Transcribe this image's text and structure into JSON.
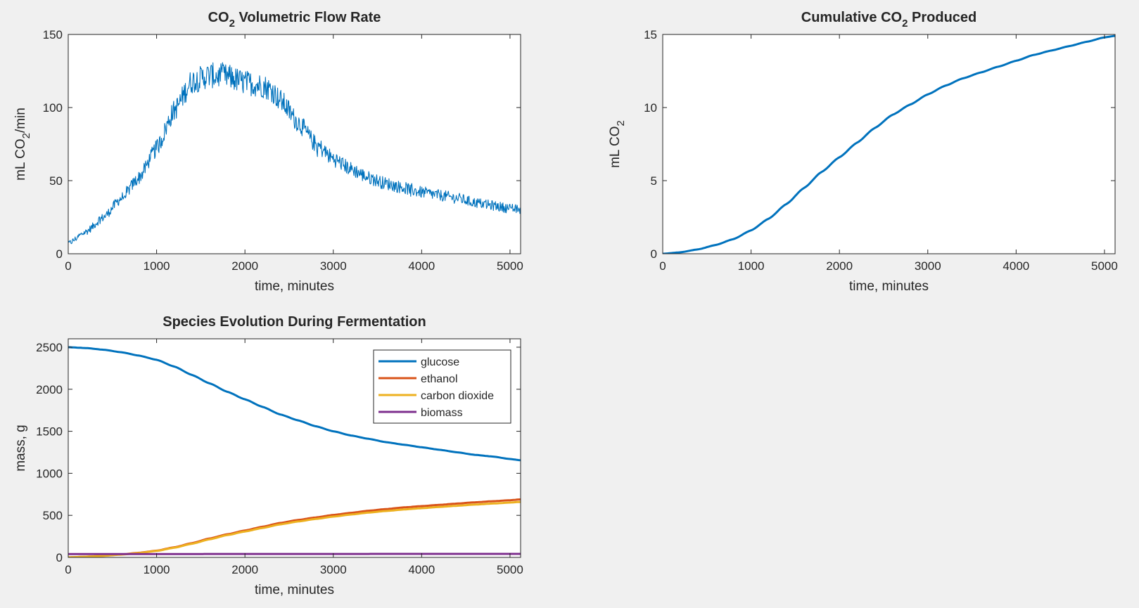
{
  "colors": {
    "background": "#f0f0f0",
    "axes": "#ffffff",
    "frame": "#262626",
    "blue": "#0072bd",
    "orange": "#d95319",
    "yellow": "#edb120",
    "purple": "#7e2f8e"
  },
  "chart_data": [
    {
      "type": "line",
      "title": "CO",
      "title_sub": "2",
      "title_rest": " Volumetric Flow Rate",
      "xlabel": "time, minutes",
      "ylabel": "mL CO",
      "ylabel_sub": "2",
      "ylabel_rest": "/min",
      "xlim": [
        0,
        5120
      ],
      "ylim": [
        0,
        150
      ],
      "xticks": [
        0,
        1000,
        2000,
        3000,
        4000,
        5000
      ],
      "yticks": [
        0,
        50,
        100,
        150
      ],
      "grid": false,
      "series": [
        {
          "color": "#0072bd",
          "noisy": true,
          "x": [
            0,
            200,
            400,
            600,
            800,
            1000,
            1200,
            1400,
            1600,
            1800,
            2000,
            2200,
            2300,
            2400,
            2600,
            2800,
            3000,
            3200,
            3400,
            3600,
            3800,
            4000,
            4200,
            4400,
            4600,
            4800,
            5000,
            5120
          ],
          "y": [
            7,
            15,
            25,
            38,
            52,
            72,
            98,
            118,
            122,
            121,
            117,
            115,
            112,
            105,
            90,
            75,
            65,
            58,
            52,
            48,
            45,
            42,
            40,
            38,
            35,
            33,
            31,
            30
          ]
        }
      ]
    },
    {
      "type": "line",
      "title": "Cumulative CO",
      "title_sub": "2",
      "title_rest": " Produced",
      "xlabel": "time, minutes",
      "ylabel": "mL CO",
      "ylabel_sub": "2",
      "ylabel_rest": "",
      "xlim": [
        0,
        5120
      ],
      "ylim": [
        0,
        15
      ],
      "xticks": [
        0,
        1000,
        2000,
        3000,
        4000,
        5000
      ],
      "yticks": [
        0,
        5,
        10,
        15
      ],
      "grid": false,
      "series": [
        {
          "color": "#0072bd",
          "x": [
            0,
            200,
            400,
            600,
            800,
            1000,
            1200,
            1400,
            1600,
            1800,
            2000,
            2200,
            2400,
            2600,
            2800,
            3000,
            3200,
            3400,
            3600,
            3800,
            4000,
            4200,
            4400,
            4600,
            4800,
            5000,
            5120
          ],
          "y": [
            0,
            0.1,
            0.3,
            0.6,
            1.0,
            1.6,
            2.4,
            3.4,
            4.5,
            5.6,
            6.6,
            7.6,
            8.6,
            9.5,
            10.2,
            10.9,
            11.5,
            12.0,
            12.4,
            12.8,
            13.2,
            13.6,
            13.9,
            14.2,
            14.5,
            14.8,
            14.9
          ]
        }
      ]
    },
    {
      "type": "line",
      "title": "Species Evolution During Fermentation",
      "xlabel": "time, minutes",
      "ylabel": "mass, g",
      "xlim": [
        0,
        5120
      ],
      "ylim": [
        0,
        2600
      ],
      "xticks": [
        0,
        1000,
        2000,
        3000,
        4000,
        5000
      ],
      "yticks": [
        0,
        500,
        1000,
        1500,
        2000,
        2500
      ],
      "grid": false,
      "legend_position": "top-right",
      "series": [
        {
          "name": "glucose",
          "color": "#0072bd",
          "x": [
            0,
            200,
            400,
            600,
            800,
            1000,
            1200,
            1400,
            1600,
            1800,
            2000,
            2200,
            2400,
            2600,
            2800,
            3000,
            3200,
            3400,
            3600,
            3800,
            4000,
            4200,
            4400,
            4600,
            4800,
            5000,
            5120
          ],
          "y": [
            2500,
            2490,
            2470,
            2440,
            2400,
            2350,
            2270,
            2170,
            2070,
            1970,
            1880,
            1790,
            1700,
            1630,
            1560,
            1500,
            1450,
            1410,
            1370,
            1340,
            1310,
            1280,
            1250,
            1220,
            1200,
            1170,
            1155
          ]
        },
        {
          "name": "ethanol",
          "color": "#d95319",
          "x": [
            0,
            200,
            400,
            600,
            800,
            1000,
            1200,
            1400,
            1600,
            1800,
            2000,
            2200,
            2400,
            2600,
            2800,
            3000,
            3200,
            3400,
            3600,
            3800,
            4000,
            4200,
            4400,
            4600,
            4800,
            5000,
            5120
          ],
          "y": [
            0,
            8,
            20,
            35,
            55,
            80,
            120,
            170,
            225,
            275,
            320,
            365,
            410,
            445,
            475,
            505,
            530,
            555,
            575,
            595,
            610,
            625,
            640,
            655,
            668,
            680,
            690
          ]
        },
        {
          "name": "carbon dioxide",
          "color": "#edb120",
          "x": [
            0,
            200,
            400,
            600,
            800,
            1000,
            1200,
            1400,
            1600,
            1800,
            2000,
            2200,
            2400,
            2600,
            2800,
            3000,
            3200,
            3400,
            3600,
            3800,
            4000,
            4200,
            4400,
            4600,
            4800,
            5000,
            5120
          ],
          "y": [
            0,
            8,
            19,
            33,
            52,
            77,
            115,
            162,
            215,
            265,
            308,
            350,
            393,
            427,
            457,
            485,
            510,
            533,
            552,
            570,
            585,
            600,
            614,
            628,
            640,
            652,
            660
          ]
        },
        {
          "name": "biomass",
          "color": "#7e2f8e",
          "x": [
            0,
            1000,
            2000,
            3000,
            4000,
            5120
          ],
          "y": [
            40,
            40,
            41,
            41,
            42,
            42
          ]
        }
      ]
    }
  ]
}
